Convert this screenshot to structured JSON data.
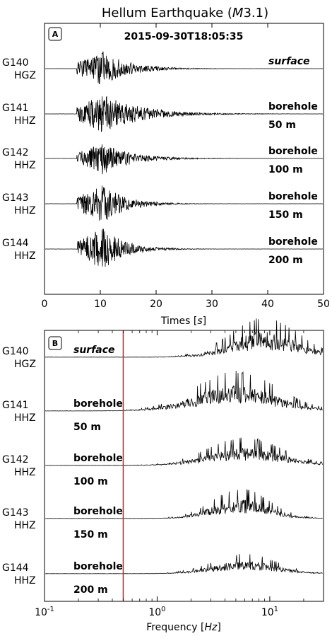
{
  "title": "Hellum Earthquake (M3.1)",
  "title_parts": {
    "pre": "Hellum Earthquake (",
    "mag_var": "M",
    "mag_val": "3.1",
    "post": ")"
  },
  "chart_data": [
    {
      "panel": "A",
      "type": "line",
      "timestamp": "2015-09-30T18:05:35",
      "xlabel": "Times [s]",
      "xlabel_parts": {
        "pre": "Times [",
        "unit": "s",
        "post": "]"
      },
      "xlim": [
        0,
        50
      ],
      "xticks": [
        "0",
        "10",
        "20",
        "30",
        "40",
        "50"
      ],
      "tick_values": [
        0,
        10,
        20,
        30,
        40,
        50
      ],
      "onset_s": 5.8,
      "peak_s": 10.5,
      "series": [
        {
          "station": "G140",
          "channel": "HGZ",
          "location": "surface",
          "depth": "",
          "amp": 0.85,
          "decay": 4.5
        },
        {
          "station": "G141",
          "channel": "HHZ",
          "location": "borehole",
          "depth": "50 m",
          "amp": 0.95,
          "decay": 6.5
        },
        {
          "station": "G142",
          "channel": "HHZ",
          "location": "borehole",
          "depth": "100 m",
          "amp": 0.75,
          "decay": 5.0
        },
        {
          "station": "G143",
          "channel": "HHZ",
          "location": "borehole",
          "depth": "150 m",
          "amp": 0.95,
          "decay": 4.0
        },
        {
          "station": "G144",
          "channel": "HHZ",
          "location": "borehole",
          "depth": "200 m",
          "amp": 1.0,
          "decay": 4.0
        }
      ]
    },
    {
      "panel": "B",
      "type": "line",
      "x_scale": "log",
      "xlabel": "Frequency [Hz]",
      "xlabel_parts": {
        "pre": "Frequency [",
        "unit": "Hz",
        "post": "]"
      },
      "xlim": [
        0.1,
        30
      ],
      "xticks": [
        {
          "base": "10",
          "exp": "-1"
        },
        {
          "base": "10",
          "exp": "0"
        },
        {
          "base": "10",
          "exp": "1"
        }
      ],
      "tick_values": [
        0.1,
        1,
        10
      ],
      "vline_hz": 0.5,
      "vline_color": "#d42020",
      "series": [
        {
          "station": "G140",
          "channel": "HGZ",
          "location": "surface",
          "depth": "",
          "center_hz": 9,
          "width": 0.3,
          "amp": 1.0
        },
        {
          "station": "G141",
          "channel": "HHZ",
          "location": "borehole",
          "depth": "50 m",
          "center_hz": 5,
          "width": 0.36,
          "amp": 1.0
        },
        {
          "station": "G142",
          "channel": "HHZ",
          "location": "borehole",
          "depth": "100 m",
          "center_hz": 6,
          "width": 0.33,
          "amp": 0.7
        },
        {
          "station": "G143",
          "channel": "HHZ",
          "location": "borehole",
          "depth": "150 m",
          "center_hz": 5.5,
          "width": 0.25,
          "amp": 0.75
        },
        {
          "station": "G144",
          "channel": "HHZ",
          "location": "borehole",
          "depth": "200 m",
          "center_hz": 6,
          "width": 0.28,
          "amp": 0.5
        }
      ]
    }
  ]
}
